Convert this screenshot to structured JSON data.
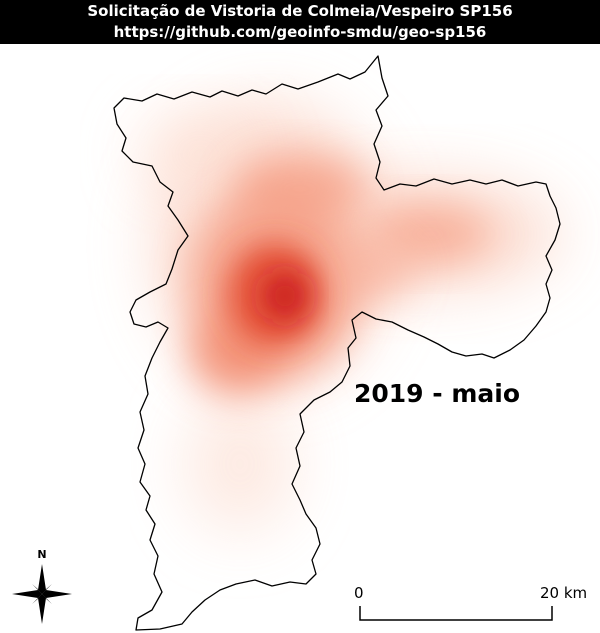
{
  "header": {
    "title": "Solicitação de Vistoria de Colmeia/Vespeiro SP156",
    "source_url": "https://github.com/geoinfo-smdu/geo-sp156"
  },
  "map": {
    "period_label": "2019 - maio",
    "heatmap_colors": [
      "#ffffff",
      "#fcd9cc",
      "#f4876a",
      "#e2391f",
      "#c8171b"
    ],
    "boundary_color": "#000000"
  },
  "north_arrow": {
    "label": "N"
  },
  "scalebar": {
    "start_label": "0",
    "end_label": "20 km"
  }
}
